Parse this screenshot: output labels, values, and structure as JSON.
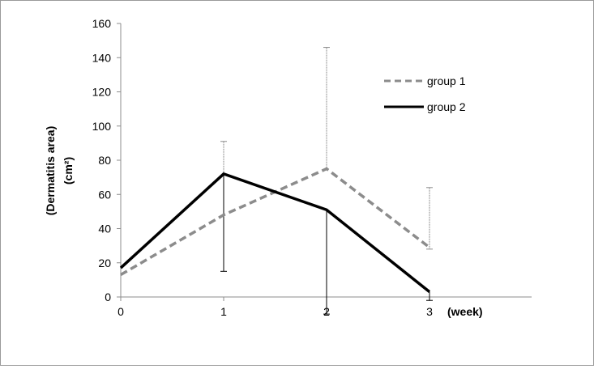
{
  "chart_data": {
    "type": "line",
    "x": [
      0,
      1,
      2,
      3
    ],
    "x_tick_labels": [
      "0",
      "1",
      "2",
      "3"
    ],
    "x_unit_label": "(week)",
    "ylabel_line1": "(Dermatitis area)",
    "ylabel_line2": "(cm²)",
    "ylim": [
      0,
      160
    ],
    "y_ticks": [
      0,
      20,
      40,
      60,
      80,
      100,
      120,
      140,
      160
    ],
    "y_tick_labels": [
      "0",
      "20",
      "40",
      "60",
      "80",
      "100",
      "120",
      "140",
      "160"
    ],
    "grid": false,
    "legend_position": "right",
    "series": [
      {
        "name": "group 1",
        "values": [
          13,
          48,
          75,
          29
        ],
        "error_upper": [
          13,
          91,
          146,
          64
        ],
        "error_lower": [
          13,
          48,
          75,
          28
        ],
        "color": "#8c8c8c",
        "style": "dashed"
      },
      {
        "name": "group 2",
        "values": [
          17,
          72,
          51,
          3
        ],
        "error_upper": [
          17,
          72,
          51,
          3
        ],
        "error_lower": [
          17,
          15,
          -10,
          -2
        ],
        "color": "#000000",
        "style": "solid"
      }
    ]
  }
}
